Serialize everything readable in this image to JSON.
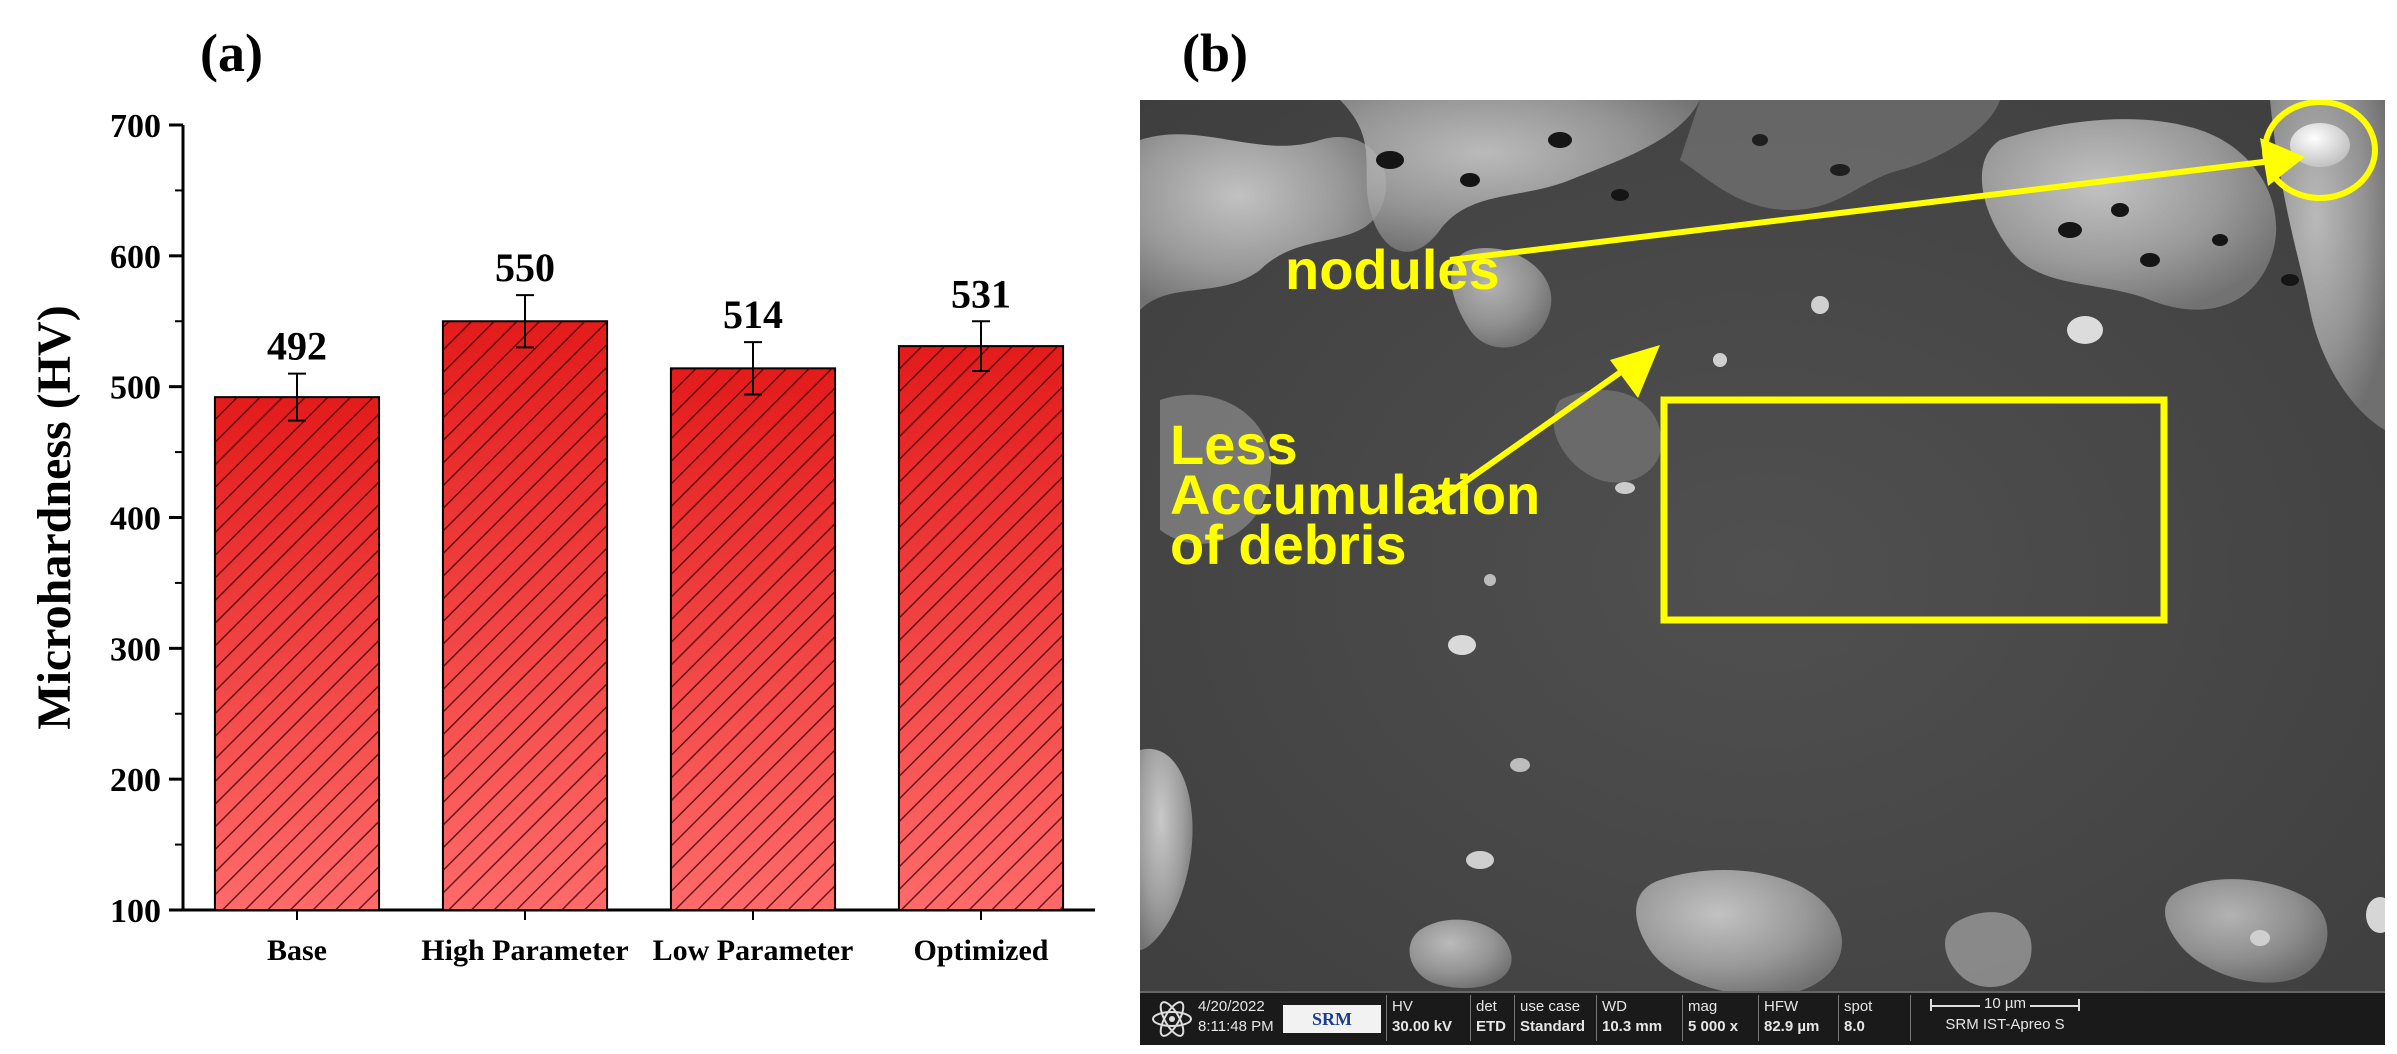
{
  "panels": {
    "a_label": "(a)",
    "b_label": "(b)"
  },
  "chart_data": {
    "type": "bar",
    "categories": [
      "Base",
      "High Parameter",
      "Low Parameter",
      "Optimized"
    ],
    "values": [
      492,
      550,
      514,
      531
    ],
    "data_labels": [
      "492",
      "550",
      "514",
      "531"
    ],
    "error_bars": [
      18,
      20,
      20,
      19
    ],
    "ylabel": "Microhardness (HV)",
    "xlabel": "",
    "ylim": [
      100,
      700
    ],
    "yticks": [
      100,
      200,
      300,
      400,
      500,
      600,
      700
    ],
    "grid": false,
    "bar_color": "#ee2222",
    "hatch": "diagonal"
  },
  "sem": {
    "annotations": {
      "nodules": "nodules",
      "less_line1": "Less",
      "less_line2": "Accumulation",
      "less_line3": "of debris"
    },
    "annotation_color": "#ffff00",
    "info_bar": {
      "date": "4/20/2022",
      "time": "8:11:48 PM",
      "logo": "SRM",
      "hv_label": "HV",
      "hv_value": "30.00 kV",
      "det_label": "det",
      "det_value": "ETD",
      "usecase_label": "use case",
      "usecase_value": "Standard",
      "wd_label": "WD",
      "wd_value": "10.3 mm",
      "mag_label": "mag",
      "mag_value": "5 000 x",
      "hfw_label": "HFW",
      "hfw_value": "82.9 µm",
      "spot_label": "spot",
      "spot_value": "8.0",
      "scale_bar": "10 µm",
      "instrument": "SRM IST-Apreo S"
    }
  }
}
